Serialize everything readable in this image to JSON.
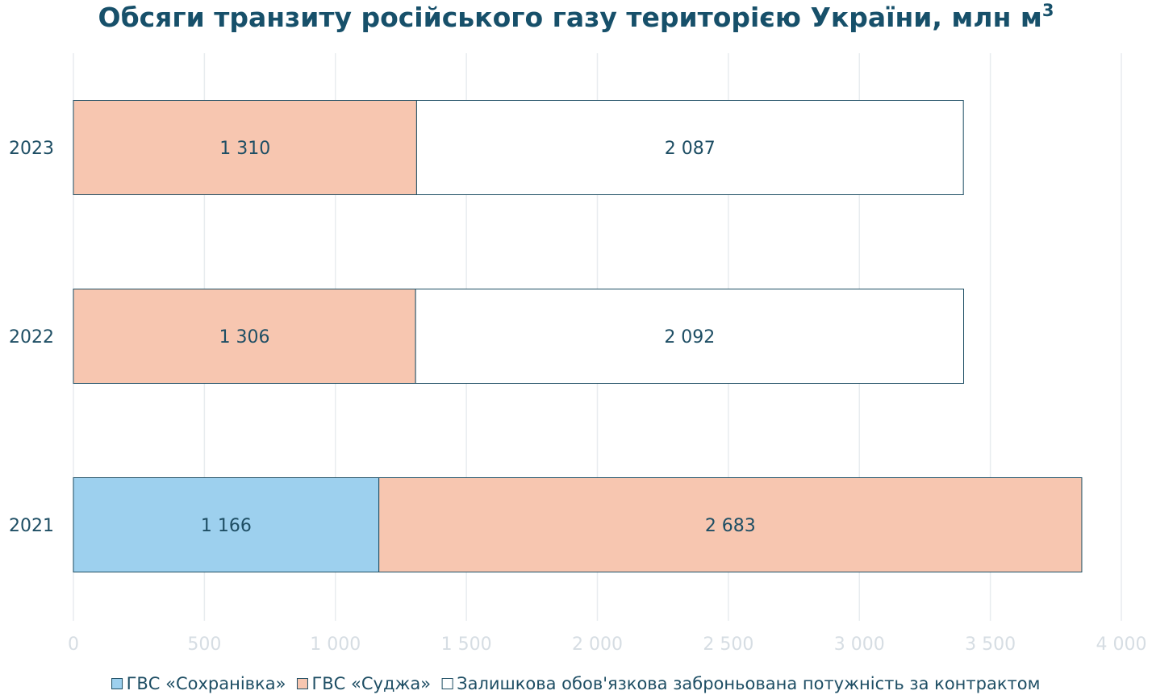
{
  "chart_data": {
    "type": "bar",
    "orientation": "horizontal",
    "stacked": true,
    "title": "Обсяги транзиту російського газу територією України, млн м",
    "title_superscript": "3",
    "categories": [
      "2023",
      "2022",
      "2021"
    ],
    "series": [
      {
        "name": "ГВС «Сохранівка»",
        "values": [
          0,
          0,
          1166
        ],
        "labels": [
          "",
          "",
          "1 166"
        ],
        "color": "#9dd0ee"
      },
      {
        "name": "ГВС «Суджа»",
        "values": [
          1310,
          1306,
          2683
        ],
        "labels": [
          "1 310",
          "1 306",
          "2 683"
        ],
        "color": "#f7c6b0"
      },
      {
        "name": "Залишкова обов'язкова заброньована потужність за контрактом",
        "values": [
          2087,
          2092,
          0
        ],
        "labels": [
          "2 087",
          "2 092",
          ""
        ],
        "color": "#ffffff"
      }
    ],
    "xlim": [
      0,
      4000
    ],
    "xticks": [
      0,
      500,
      1000,
      1500,
      2000,
      2500,
      3000,
      3500,
      4000
    ],
    "xtick_labels": [
      "0",
      "500",
      "1 000",
      "1 500",
      "2 000",
      "2 500",
      "3 000",
      "3 500",
      "4 000"
    ],
    "grid": true,
    "legend_position": "bottom",
    "colors": {
      "title": "#17506a",
      "text": "#1e4e64",
      "bar_border": "#1e4e64",
      "tick": "#d6dde3",
      "grid": "#e8ecef"
    }
  }
}
